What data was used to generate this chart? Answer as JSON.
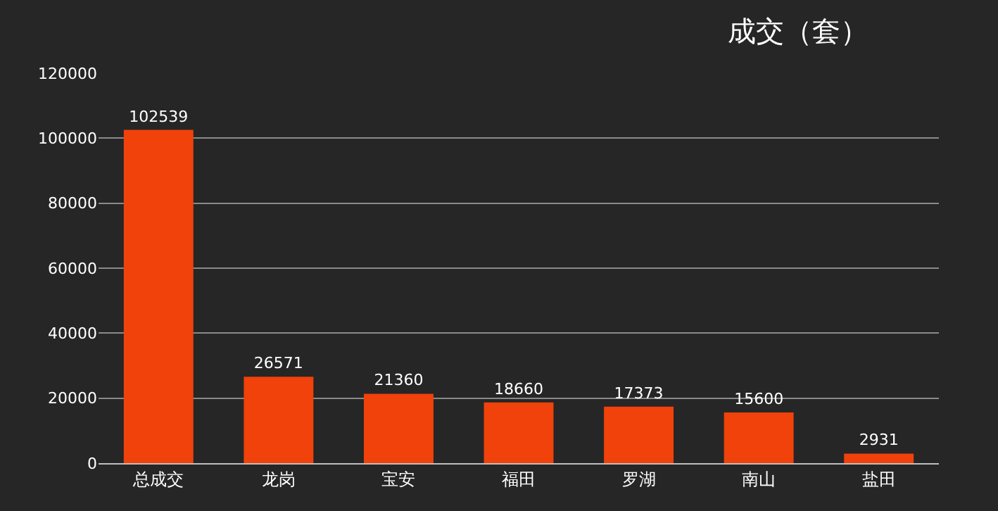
{
  "chart_data": {
    "type": "bar",
    "title": "成交（套）",
    "categories": [
      "总成交",
      "龙岗",
      "宝安",
      "福田",
      "罗湖",
      "南山",
      "盐田"
    ],
    "values": [
      102539,
      26571,
      21360,
      18660,
      17373,
      15600,
      2931
    ],
    "color": "#f0420a",
    "ylim": [
      0,
      120000
    ],
    "yticks": [
      0,
      20000,
      40000,
      60000,
      80000,
      100000,
      120000
    ],
    "grid": "y",
    "data_labels": true,
    "legend": false
  }
}
